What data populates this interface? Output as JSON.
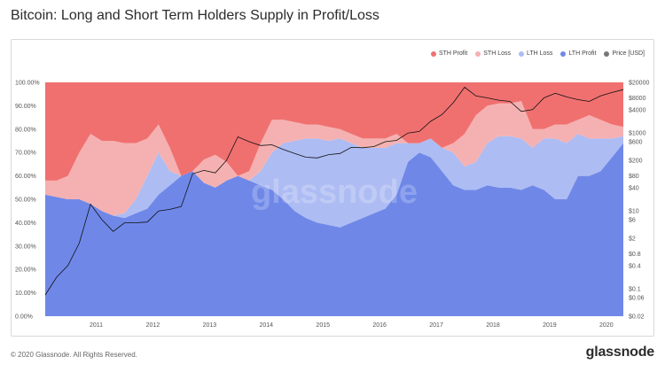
{
  "title": "Bitcoin: Long and Short Term Holders Supply in Profit/Loss",
  "footer": {
    "copyright": "© 2020 Glassnode. All Rights Reserved.",
    "logo": "glassnode"
  },
  "watermark": "glassnode",
  "colors": {
    "sth_profit": "#f07070",
    "sth_loss": "#f5b1b1",
    "lth_loss": "#adbcf3",
    "lth_profit": "#6f88e8",
    "price": "#111111"
  },
  "chart_data": {
    "type": "area",
    "title": "Bitcoin: Long and Short Term Holders Supply in Profit/Loss",
    "x_ticks": [
      "2011",
      "2012",
      "2013",
      "2014",
      "2015",
      "2016",
      "2017",
      "2018",
      "2019",
      "2020"
    ],
    "y_left_ticks": [
      "0.00%",
      "10.00%",
      "20.00%",
      "30.00%",
      "40.00%",
      "50.00%",
      "60.00%",
      "70.00%",
      "80.00%",
      "90.00%",
      "100.00%"
    ],
    "y_right_ticks": [
      "$0.02",
      "$0.06",
      "$0.1",
      "$0.4",
      "$0.8",
      "$2",
      "$6",
      "$10",
      "$40",
      "$80",
      "$200",
      "$600",
      "$1000",
      "$4000",
      "$8000",
      "$20000"
    ],
    "y_left_range": [
      0,
      100
    ],
    "y_right_scale": "log",
    "y_right_range": [
      0.02,
      20000
    ],
    "legend_position": "top-right",
    "legend": [
      {
        "name": "STH Profit",
        "color": "#f07070"
      },
      {
        "name": "STH Loss",
        "color": "#f5b1b1"
      },
      {
        "name": "LTH Loss",
        "color": "#adbcf3"
      },
      {
        "name": "LTH Profit",
        "color": "#6f88e8"
      },
      {
        "name": "Price [USD]",
        "color": "#777777"
      }
    ],
    "x": [
      2010.6,
      2010.8,
      2011.0,
      2011.2,
      2011.4,
      2011.6,
      2011.8,
      2012.0,
      2012.2,
      2012.4,
      2012.6,
      2012.8,
      2013.0,
      2013.2,
      2013.4,
      2013.6,
      2013.8,
      2014.0,
      2014.2,
      2014.4,
      2014.6,
      2014.8,
      2015.0,
      2015.2,
      2015.4,
      2015.6,
      2015.8,
      2016.0,
      2016.2,
      2016.4,
      2016.6,
      2016.8,
      2017.0,
      2017.2,
      2017.4,
      2017.6,
      2017.8,
      2018.0,
      2018.2,
      2018.4,
      2018.6,
      2018.8,
      2019.0,
      2019.2,
      2019.4,
      2019.6,
      2019.8,
      2020.0,
      2020.2,
      2020.4,
      2020.6,
      2020.8
    ],
    "series": [
      {
        "name": "LTH Profit",
        "values": [
          52,
          51,
          50,
          50,
          48,
          45,
          43,
          42,
          44,
          46,
          52,
          56,
          60,
          62,
          57,
          55,
          58,
          60,
          58,
          56,
          54,
          50,
          45,
          42,
          40,
          39,
          38,
          40,
          42,
          44,
          46,
          52,
          66,
          70,
          68,
          62,
          56,
          54,
          54,
          56,
          55,
          55,
          54,
          56,
          54,
          50,
          50,
          60,
          60,
          62,
          68,
          74
        ]
      },
      {
        "name": "LTH Loss",
        "values": [
          0,
          0,
          0,
          0,
          0,
          0,
          0,
          2,
          6,
          14,
          18,
          6,
          0,
          0,
          0,
          0,
          0,
          0,
          0,
          6,
          16,
          24,
          30,
          34,
          36,
          36,
          38,
          34,
          30,
          28,
          26,
          22,
          8,
          4,
          8,
          10,
          14,
          10,
          12,
          18,
          22,
          22,
          22,
          16,
          22,
          26,
          24,
          18,
          16,
          14,
          8,
          3
        ]
      },
      {
        "name": "STH Loss",
        "values": [
          6,
          7,
          10,
          20,
          30,
          30,
          32,
          30,
          24,
          16,
          12,
          10,
          0,
          0,
          10,
          14,
          8,
          0,
          4,
          12,
          14,
          10,
          8,
          6,
          6,
          6,
          4,
          4,
          4,
          4,
          4,
          4,
          0,
          0,
          0,
          0,
          4,
          14,
          20,
          16,
          14,
          14,
          16,
          8,
          4,
          6,
          8,
          6,
          10,
          8,
          6,
          4
        ]
      },
      {
        "name": "STH Profit",
        "values": [
          42,
          42,
          40,
          30,
          22,
          25,
          25,
          26,
          26,
          24,
          18,
          28,
          40,
          38,
          33,
          31,
          34,
          40,
          38,
          26,
          16,
          16,
          17,
          18,
          18,
          19,
          20,
          22,
          24,
          24,
          24,
          22,
          26,
          26,
          24,
          28,
          26,
          22,
          14,
          10,
          9,
          9,
          8,
          20,
          20,
          18,
          18,
          16,
          14,
          16,
          18,
          19
        ]
      },
      {
        "name": "Price [USD]",
        "values": [
          0.07,
          0.2,
          0.4,
          1.5,
          15,
          6,
          3,
          5,
          5,
          5.2,
          10,
          11,
          13,
          90,
          110,
          95,
          200,
          800,
          600,
          480,
          500,
          380,
          300,
          240,
          230,
          280,
          300,
          430,
          420,
          450,
          600,
          650,
          1000,
          1100,
          2000,
          3000,
          6000,
          15000,
          9000,
          8000,
          7000,
          6500,
          3600,
          4000,
          8000,
          10500,
          8500,
          7200,
          6500,
          9000,
          11000,
          13000
        ]
      }
    ]
  }
}
